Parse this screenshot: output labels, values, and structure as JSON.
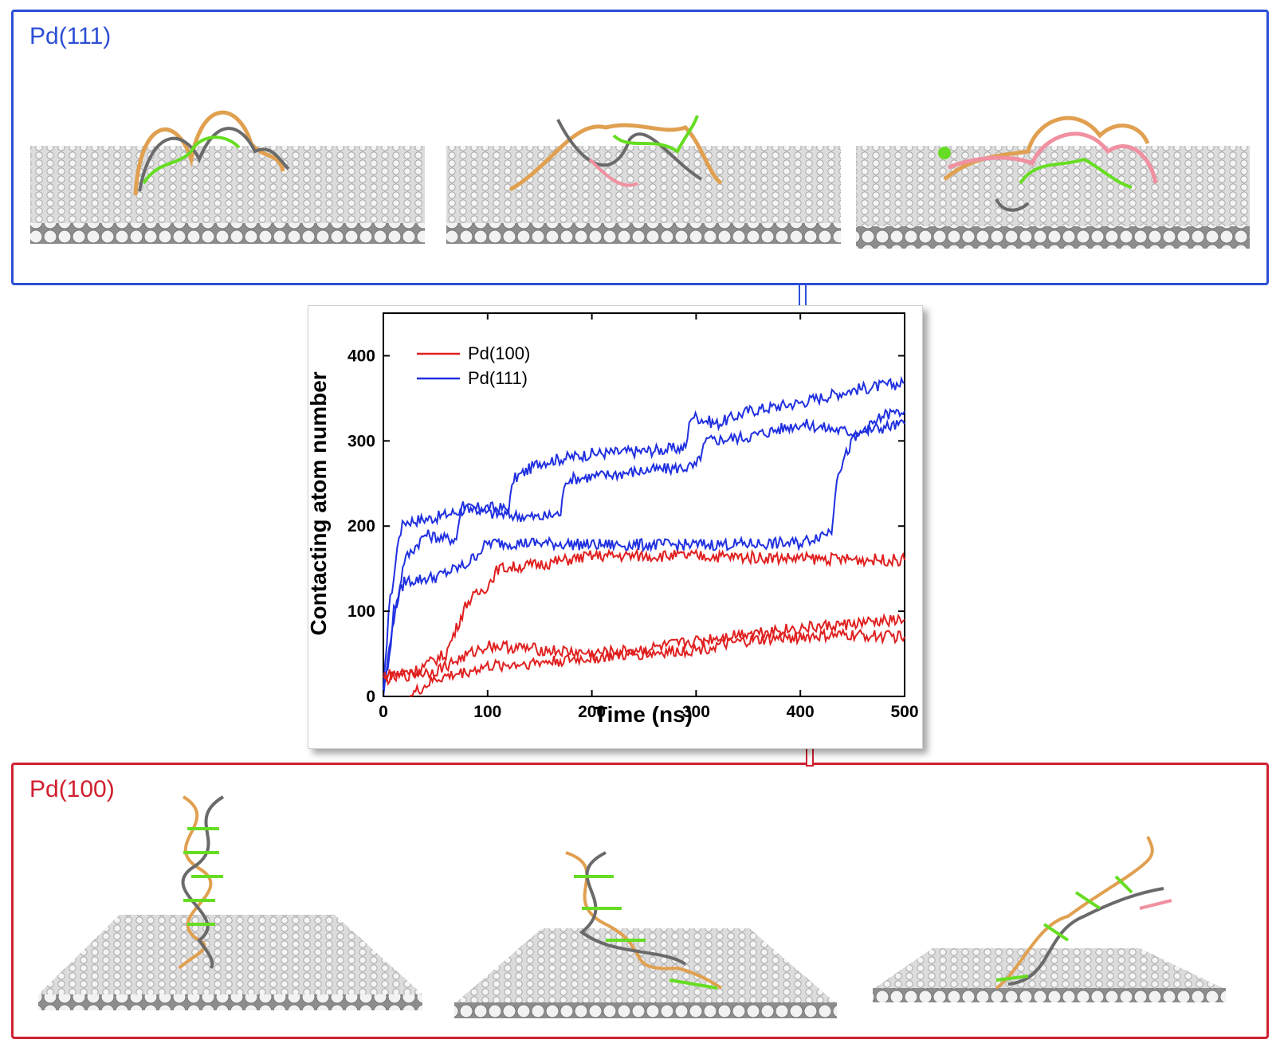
{
  "panels": {
    "top": {
      "label": "Pd(111)",
      "color": "#2d4fd6"
    },
    "bottom": {
      "label": "Pd(100)",
      "color": "#d02030"
    }
  },
  "chart_data": {
    "type": "line",
    "xlabel": "Time (ns)",
    "ylabel": "Contacting atom number",
    "xlim": [
      0,
      500
    ],
    "ylim": [
      0,
      450
    ],
    "xticks": [
      0,
      100,
      200,
      300,
      400,
      500
    ],
    "yticks": [
      0,
      100,
      200,
      300,
      400
    ],
    "legend_position": "top-left",
    "legend": [
      {
        "name": "Pd(100)",
        "color": "#e02020"
      },
      {
        "name": "Pd(111)",
        "color": "#2030e0"
      }
    ],
    "series": [
      {
        "name": "Pd(111)",
        "color": "#2030e0",
        "x": [
          0,
          5,
          10,
          15,
          20,
          50,
          80,
          100,
          120,
          125,
          150,
          175,
          200,
          250,
          290,
          295,
          320,
          350,
          400,
          450,
          500
        ],
        "y": [
          0,
          100,
          140,
          190,
          205,
          210,
          220,
          222,
          220,
          255,
          275,
          280,
          285,
          288,
          292,
          330,
          320,
          335,
          345,
          360,
          368
        ]
      },
      {
        "name": "Pd(111)",
        "color": "#2030e0",
        "x": [
          0,
          10,
          20,
          40,
          60,
          70,
          75,
          100,
          150,
          170,
          175,
          200,
          250,
          300,
          310,
          350,
          400,
          450,
          500
        ],
        "y": [
          0,
          90,
          160,
          190,
          185,
          185,
          225,
          215,
          210,
          215,
          255,
          258,
          265,
          270,
          300,
          305,
          320,
          310,
          320
        ]
      },
      {
        "name": "Pd(111)",
        "color": "#2030e0",
        "x": [
          0,
          10,
          20,
          50,
          80,
          100,
          150,
          200,
          300,
          400,
          430,
          435,
          450,
          480,
          500
        ],
        "y": [
          0,
          100,
          135,
          140,
          155,
          180,
          180,
          178,
          178,
          180,
          195,
          260,
          300,
          330,
          335
        ]
      },
      {
        "name": "Pd(100)",
        "color": "#e02020",
        "x": [
          0,
          30,
          60,
          70,
          80,
          100,
          110,
          150,
          200,
          300,
          400,
          500
        ],
        "y": [
          25,
          30,
          50,
          80,
          110,
          130,
          150,
          155,
          165,
          165,
          162,
          160
        ]
      },
      {
        "name": "Pd(100)",
        "color": "#e02020",
        "x": [
          0,
          50,
          100,
          150,
          200,
          250,
          300,
          350,
          400,
          450,
          500
        ],
        "y": [
          20,
          30,
          60,
          55,
          50,
          55,
          65,
          75,
          80,
          85,
          90
        ]
      },
      {
        "name": "Pd(100)",
        "color": "#e02020",
        "x": [
          25,
          50,
          100,
          150,
          200,
          250,
          300,
          350,
          400,
          450,
          500
        ],
        "y": [
          0,
          20,
          35,
          40,
          45,
          50,
          55,
          65,
          70,
          72,
          70
        ]
      }
    ]
  }
}
